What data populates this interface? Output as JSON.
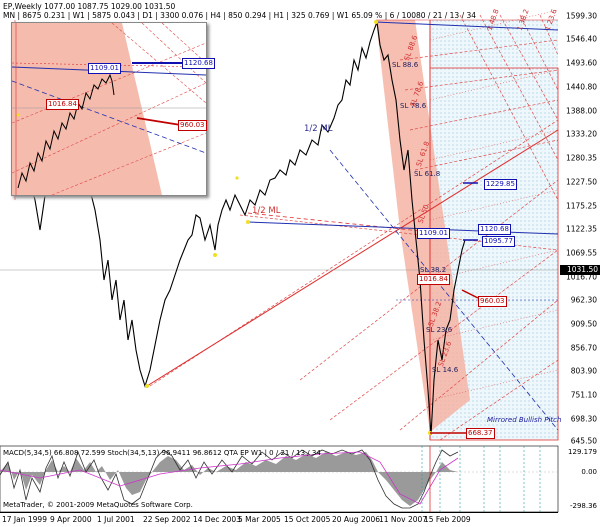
{
  "info_bar": {
    "line1": "EP,Weekly  1077.00  1087.75  1029.00  1031.50",
    "line2": "MN | 8675  0.231  |  W1 | 5875  0.043  |  D1 | 3300  0.076  |  H4 | 850  0.294  |  H1 | 325  0.769  |  W1  65.09 %  | 6 / 10080 / 21 / 13 / 34"
  },
  "price_axis": {
    "ticks": [
      "1599.30",
      "1546.40",
      "1493.60",
      "1440.80",
      "1388.00",
      "1333.20",
      "1280.35",
      "1227.50",
      "1175.25",
      "1122.35",
      "1069.55",
      "1016.70",
      "962.30",
      "909.50",
      "856.70",
      "803.90",
      "751.10",
      "698.30",
      "645.50"
    ],
    "current": "1031.50"
  },
  "osc_axis": {
    "ticks": [
      "129.179",
      "0.00",
      "-298.36"
    ]
  },
  "date_axis": {
    "ticks": [
      "17 Jan 1999",
      "9 Apr 2000",
      "1 Jul 2001",
      "22 Sep 2002",
      "14 Dec 2003",
      "5 Mar 2005",
      "15 Oct 2005",
      "20 Aug 2006",
      "11 Nov 2007",
      "15 Feb 2009"
    ]
  },
  "oscillator_label": "MACD(5,34,5) 66.808 72.599   Stoch(34,5,13) 96.9411 96.8612   QTA EP W1 | 0 / 21 / 13 / 34",
  "copyright": "MetaTrader, © 2001-2009 MetaQuotes Software Corp.",
  "levels": {
    "box_1109": "1109.01",
    "box_1120": "1120.68",
    "box_1095": "1095.77",
    "box_1229": "1229.85",
    "box_960": "960.03",
    "box_668": "668.37",
    "box_1016": "1016.84",
    "inset_1109": "1109.01",
    "inset_1120": "1120.68",
    "inset_1016": "1016.84",
    "inset_960": "960.03"
  },
  "annotations": {
    "half_ml_blue": "1/2 ML",
    "half_ml_red": "1/2 ML",
    "sl_88_6": "SL 88.6",
    "sl_78_6": "SL 78.6",
    "sl_61_8": "SL 61.8",
    "sl_38_2": "SL 38.2",
    "sl_23_6": "SL 23.6",
    "sl_14_6": "SL 14.6",
    "sl_red_1": "SL 88.6",
    "sl_red_2": "SL 78.6",
    "sl_red_3": "SL 61.8",
    "sl_red_4": "SL 50",
    "sl_red_5": "SL 38.2",
    "sl_red_6": "SL 23.6",
    "top_1": "1 48.8",
    "top_2": "1 38.2",
    "top_3": "1 23.6",
    "signature": "Mirrored Bullish Pitch"
  },
  "colors": {
    "price_line": "#000000",
    "median_red": "#e03030",
    "median_blue": "#2030b0",
    "shade_red": "#f5b8a8",
    "shade_blue": "#dff0f8",
    "pivot_yellow": "#f0e020"
  }
}
